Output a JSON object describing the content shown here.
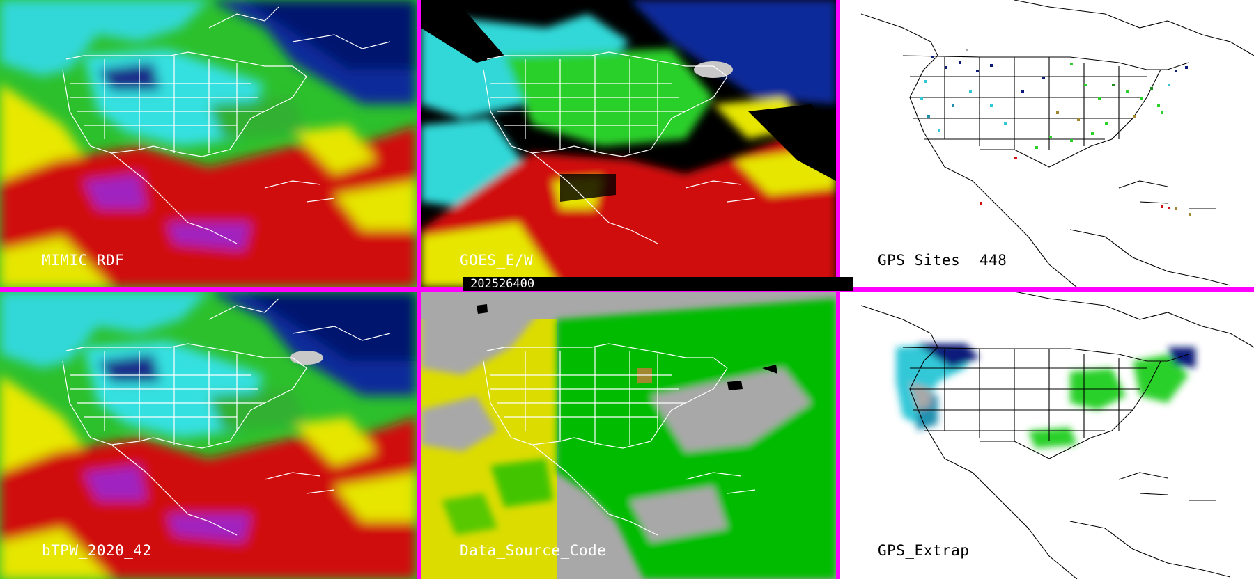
{
  "panels": {
    "mimic_rdf": {
      "label": "MIMIC RDF"
    },
    "goes_ew": {
      "label": "GOES_E/W"
    },
    "gps_sites": {
      "label": "GPS Sites",
      "count": "448"
    },
    "btpw": {
      "label": "bTPW_2020_42"
    },
    "data_source": {
      "label": "Data_Source_Code"
    },
    "gps_extrap": {
      "label": "GPS_Extrap"
    }
  },
  "timestamp": "202526400",
  "colors": {
    "divider": "#ff00ff",
    "tpw_red": "#d81010",
    "tpw_yellow": "#e6e600",
    "tpw_green": "#2cd02c",
    "tpw_cyan": "#30e0e0",
    "tpw_blue": "#1028a0",
    "source_gray": "#a8a8a8",
    "source_yellow": "#dcdc00",
    "source_green": "#00bb00"
  }
}
